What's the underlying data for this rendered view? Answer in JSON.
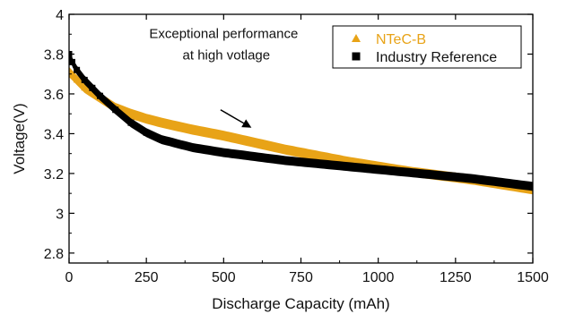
{
  "chart_data": {
    "type": "scatter",
    "title": "",
    "xlabel": "Discharge Capacity (mAh)",
    "ylabel": "Voltage(V)",
    "xlim": [
      0,
      1500
    ],
    "ylim": [
      2.75,
      4.0
    ],
    "xticks": [
      0,
      250,
      500,
      750,
      1000,
      1250,
      1500
    ],
    "xtick_labels": [
      "0",
      "250",
      "500",
      "750",
      "1000",
      "1250",
      "1500"
    ],
    "yticks": [
      2.8,
      3.0,
      3.2,
      3.4,
      3.6,
      3.8,
      4.0
    ],
    "ytick_labels": [
      "2.8",
      "3",
      "3.2",
      "3.4",
      "3.6",
      "3.8",
      "4"
    ],
    "grid": false,
    "legend_position": "top-right",
    "series": [
      {
        "name": "NTeC-B",
        "marker": "triangle",
        "color": "#E8A317",
        "band_width_v": 0.05,
        "x": [
          0,
          25,
          50,
          100,
          150,
          200,
          250,
          300,
          400,
          500,
          600,
          700,
          800,
          900,
          1000,
          1100,
          1200,
          1300,
          1400,
          1500
        ],
        "y": [
          3.71,
          3.67,
          3.63,
          3.58,
          3.53,
          3.5,
          3.475,
          3.455,
          3.42,
          3.39,
          3.355,
          3.32,
          3.29,
          3.26,
          3.235,
          3.21,
          3.19,
          3.17,
          3.145,
          3.12
        ]
      },
      {
        "name": "Industry Reference",
        "marker": "square",
        "color": "#000000",
        "band_width_v": 0.045,
        "x": [
          0,
          10,
          25,
          50,
          75,
          100,
          150,
          200,
          250,
          300,
          400,
          500,
          600,
          700,
          800,
          900,
          1000,
          1100,
          1200,
          1300,
          1400,
          1500
        ],
        "y": [
          3.8,
          3.76,
          3.72,
          3.67,
          3.63,
          3.59,
          3.52,
          3.455,
          3.405,
          3.37,
          3.33,
          3.305,
          3.285,
          3.265,
          3.25,
          3.235,
          3.22,
          3.205,
          3.19,
          3.175,
          3.155,
          3.135
        ]
      }
    ],
    "annotations": [
      {
        "lines": [
          "Exceptional performance",
          "at high votlage"
        ],
        "text_at": [
          500,
          3.88
        ],
        "arrow_from": [
          490,
          3.52
        ],
        "arrow_to": [
          590,
          3.43
        ]
      }
    ]
  }
}
